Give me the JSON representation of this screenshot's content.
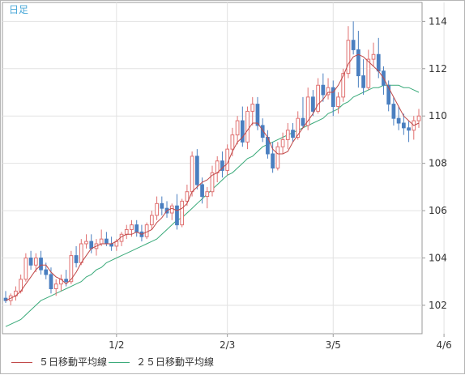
{
  "chart_data": {
    "type": "candlestick",
    "period_label": "日足",
    "ylim": [
      100.8,
      114.8
    ],
    "yticks": [
      102,
      104,
      106,
      108,
      110,
      112,
      114
    ],
    "x_tick_labels": [
      {
        "label": "1/2",
        "index": 22
      },
      {
        "label": "2/3",
        "index": 44
      },
      {
        "label": "3/5",
        "index": 65
      },
      {
        "label": "4/6",
        "index": 87
      }
    ],
    "grid": true,
    "up_color": "#e07070",
    "down_color": "#4a7fc0",
    "ohlc": [
      [
        102.3,
        102.6,
        102.1,
        102.2
      ],
      [
        102.2,
        102.5,
        102.0,
        102.4
      ],
      [
        102.4,
        102.8,
        102.2,
        102.6
      ],
      [
        102.6,
        103.3,
        102.5,
        103.1
      ],
      [
        103.1,
        104.2,
        103.0,
        104.0
      ],
      [
        104.0,
        104.3,
        103.5,
        103.7
      ],
      [
        103.7,
        104.2,
        103.4,
        104.0
      ],
      [
        104.0,
        104.3,
        103.3,
        103.5
      ],
      [
        103.5,
        103.8,
        103.1,
        103.3
      ],
      [
        103.3,
        103.6,
        102.5,
        102.7
      ],
      [
        102.7,
        103.1,
        102.4,
        102.9
      ],
      [
        102.9,
        103.3,
        102.6,
        103.1
      ],
      [
        103.1,
        103.5,
        102.8,
        103.0
      ],
      [
        103.0,
        104.3,
        102.9,
        104.1
      ],
      [
        104.1,
        104.5,
        103.6,
        103.8
      ],
      [
        103.8,
        104.8,
        103.7,
        104.6
      ],
      [
        104.6,
        105.0,
        104.4,
        104.7
      ],
      [
        104.7,
        105.0,
        104.2,
        104.4
      ],
      [
        104.4,
        104.8,
        104.1,
        104.6
      ],
      [
        104.6,
        105.2,
        104.5,
        104.8
      ],
      [
        104.8,
        105.1,
        104.5,
        104.6
      ],
      [
        104.6,
        104.9,
        104.3,
        104.5
      ],
      [
        104.5,
        104.8,
        104.3,
        104.7
      ],
      [
        104.7,
        105.1,
        104.5,
        105.0
      ],
      [
        105.0,
        105.4,
        104.8,
        105.2
      ],
      [
        105.2,
        105.6,
        104.9,
        105.4
      ],
      [
        105.4,
        105.6,
        104.9,
        105.1
      ],
      [
        105.1,
        105.4,
        104.7,
        104.9
      ],
      [
        104.9,
        105.5,
        104.8,
        105.4
      ],
      [
        105.4,
        106.0,
        105.2,
        105.8
      ],
      [
        105.8,
        106.6,
        105.6,
        106.3
      ],
      [
        106.3,
        106.6,
        105.8,
        106.1
      ],
      [
        106.1,
        106.4,
        105.7,
        105.9
      ],
      [
        105.9,
        106.3,
        105.6,
        106.2
      ],
      [
        106.2,
        106.7,
        105.2,
        105.4
      ],
      [
        105.4,
        106.5,
        105.3,
        106.4
      ],
      [
        106.4,
        107.1,
        106.2,
        106.8
      ],
      [
        106.8,
        108.5,
        106.6,
        108.3
      ],
      [
        108.3,
        108.6,
        106.9,
        107.1
      ],
      [
        107.1,
        107.4,
        106.3,
        106.6
      ],
      [
        106.6,
        107.0,
        106.1,
        106.8
      ],
      [
        106.8,
        107.9,
        106.6,
        107.6
      ],
      [
        107.6,
        108.3,
        107.2,
        108.1
      ],
      [
        108.1,
        108.5,
        107.4,
        107.7
      ],
      [
        107.7,
        108.8,
        107.5,
        108.6
      ],
      [
        108.6,
        109.5,
        108.3,
        109.2
      ],
      [
        109.2,
        110.0,
        108.8,
        109.8
      ],
      [
        109.8,
        110.4,
        108.7,
        108.9
      ],
      [
        108.9,
        110.4,
        108.6,
        110.2
      ],
      [
        110.2,
        110.8,
        109.6,
        110.5
      ],
      [
        110.5,
        110.8,
        109.4,
        109.6
      ],
      [
        109.6,
        109.9,
        108.9,
        109.1
      ],
      [
        109.1,
        109.4,
        108.2,
        108.4
      ],
      [
        108.4,
        108.9,
        107.6,
        107.8
      ],
      [
        107.8,
        108.9,
        107.7,
        108.7
      ],
      [
        108.7,
        109.3,
        108.4,
        109.0
      ],
      [
        109.0,
        109.7,
        108.6,
        109.4
      ],
      [
        109.4,
        109.7,
        108.9,
        109.1
      ],
      [
        109.1,
        110.2,
        109.0,
        109.9
      ],
      [
        109.9,
        110.8,
        109.5,
        109.6
      ],
      [
        109.6,
        111.2,
        109.4,
        110.8
      ],
      [
        110.8,
        111.1,
        110.0,
        110.2
      ],
      [
        110.2,
        111.6,
        110.1,
        111.3
      ],
      [
        111.3,
        111.8,
        110.6,
        110.9
      ],
      [
        110.9,
        111.6,
        110.7,
        111.2
      ],
      [
        111.2,
        111.5,
        110.0,
        110.4
      ],
      [
        110.4,
        111.0,
        110.1,
        110.8
      ],
      [
        110.8,
        112.0,
        110.6,
        111.8
      ],
      [
        111.8,
        113.8,
        111.6,
        113.2
      ],
      [
        113.2,
        114.0,
        112.6,
        112.8
      ],
      [
        112.8,
        113.6,
        111.2,
        111.7
      ],
      [
        111.7,
        112.4,
        110.9,
        111.2
      ],
      [
        111.2,
        112.8,
        111.1,
        112.4
      ],
      [
        112.4,
        113.1,
        112.1,
        112.6
      ],
      [
        112.6,
        113.3,
        111.6,
        111.9
      ],
      [
        111.9,
        112.1,
        110.9,
        111.3
      ],
      [
        111.3,
        111.5,
        110.2,
        110.5
      ],
      [
        110.5,
        110.8,
        109.6,
        109.9
      ],
      [
        109.9,
        110.4,
        109.4,
        109.7
      ],
      [
        109.7,
        110.1,
        109.2,
        109.5
      ],
      [
        109.5,
        109.8,
        108.9,
        109.4
      ],
      [
        109.4,
        110.0,
        109.0,
        109.8
      ],
      [
        109.8,
        110.3,
        109.5,
        110.0
      ]
    ],
    "ma5": [
      102.2,
      102.3,
      102.4,
      102.6,
      102.9,
      103.2,
      103.5,
      103.7,
      103.7,
      103.4,
      103.2,
      103.1,
      102.9,
      103.1,
      103.4,
      103.8,
      104.1,
      104.4,
      104.5,
      104.6,
      104.6,
      104.6,
      104.7,
      104.9,
      105.0,
      105.0,
      105.1,
      105.0,
      105.1,
      105.2,
      105.5,
      105.7,
      106.0,
      106.1,
      106.0,
      106.1,
      106.3,
      106.8,
      107.0,
      107.2,
      107.3,
      107.5,
      107.6,
      107.8,
      108.0,
      108.5,
      108.9,
      109.1,
      109.4,
      109.7,
      109.7,
      109.4,
      109.1,
      108.6,
      108.4,
      108.4,
      108.5,
      108.9,
      109.2,
      109.5,
      109.8,
      110.1,
      110.5,
      110.7,
      111.0,
      111.0,
      111.3,
      111.7,
      112.2,
      112.5,
      112.6,
      112.5,
      112.3,
      112.1,
      111.9,
      111.6,
      111.2,
      110.8,
      110.4,
      110.0,
      109.8,
      109.6,
      109.7
    ],
    "ma25": [
      101.1,
      101.2,
      101.3,
      101.4,
      101.6,
      101.8,
      102.0,
      102.2,
      102.3,
      102.4,
      102.5,
      102.6,
      102.7,
      102.8,
      102.9,
      103.0,
      103.2,
      103.3,
      103.5,
      103.6,
      103.8,
      103.9,
      104.0,
      104.1,
      104.2,
      104.3,
      104.4,
      104.5,
      104.6,
      104.7,
      104.8,
      105.0,
      105.2,
      105.4,
      105.6,
      105.7,
      105.9,
      106.1,
      106.3,
      106.5,
      106.7,
      106.9,
      107.1,
      107.3,
      107.5,
      107.6,
      107.8,
      108.0,
      108.2,
      108.3,
      108.5,
      108.7,
      108.8,
      108.9,
      109.0,
      109.1,
      109.2,
      109.3,
      109.4,
      109.5,
      109.6,
      109.7,
      109.8,
      109.9,
      110.1,
      110.2,
      110.3,
      110.5,
      110.6,
      110.8,
      110.9,
      111.0,
      111.1,
      111.2,
      111.2,
      111.3,
      111.3,
      111.3,
      111.3,
      111.2,
      111.2,
      111.1,
      111.0
    ],
    "series": [
      {
        "name": "５日移動平均線",
        "color": "#c04848"
      },
      {
        "name": "２５日移動平均線",
        "color": "#3aaa7a"
      }
    ]
  }
}
